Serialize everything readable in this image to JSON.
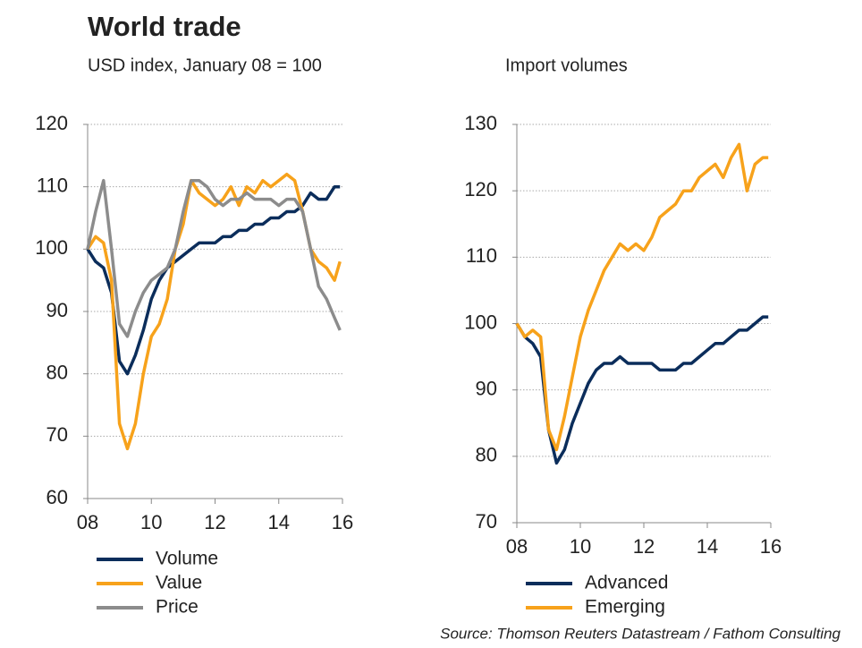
{
  "title": "World trade",
  "source": "Source: Thomson Reuters Datastream / Fathom Consulting",
  "chart_data": [
    {
      "type": "line",
      "subtitle": "USD index, January 08 = 100",
      "x": [
        2008,
        2008.25,
        2008.5,
        2008.75,
        2009,
        2009.25,
        2009.5,
        2009.75,
        2010,
        2010.25,
        2010.5,
        2010.75,
        2011,
        2011.25,
        2011.5,
        2011.75,
        2012,
        2012.25,
        2012.5,
        2012.75,
        2013,
        2013.25,
        2013.5,
        2013.75,
        2014,
        2014.25,
        2014.5,
        2014.75,
        2015,
        2015.25,
        2015.5,
        2015.75,
        2015.92
      ],
      "series": [
        {
          "name": "Volume",
          "color": "#0b2d5b",
          "values": [
            100,
            98,
            97,
            93,
            82,
            80,
            83,
            87,
            92,
            95,
            97,
            98,
            99,
            100,
            101,
            101,
            101,
            102,
            102,
            103,
            103,
            104,
            104,
            105,
            105,
            106,
            106,
            107,
            109,
            108,
            108,
            110,
            110
          ]
        },
        {
          "name": "Value",
          "color": "#f7a21b",
          "values": [
            100,
            102,
            101,
            95,
            72,
            68,
            72,
            80,
            86,
            88,
            92,
            100,
            104,
            111,
            109,
            108,
            107,
            108,
            110,
            107,
            110,
            109,
            111,
            110,
            111,
            112,
            111,
            106,
            100,
            98,
            97,
            95,
            98
          ]
        },
        {
          "name": "Price",
          "color": "#8c8c8c",
          "values": [
            100,
            106,
            111,
            100,
            88,
            86,
            90,
            93,
            95,
            96,
            97,
            100,
            106,
            111,
            111,
            110,
            108,
            107,
            108,
            108,
            109,
            108,
            108,
            108,
            107,
            108,
            108,
            106,
            100,
            94,
            92,
            89,
            87
          ]
        }
      ],
      "xlim": [
        2008,
        2016
      ],
      "xticks": [
        {
          "value": 2008,
          "label": "08"
        },
        {
          "value": 2010,
          "label": "10"
        },
        {
          "value": 2012,
          "label": "12"
        },
        {
          "value": 2014,
          "label": "14"
        },
        {
          "value": 2016,
          "label": "16"
        }
      ],
      "ylim": [
        60,
        120
      ],
      "yticks": [
        60,
        70,
        80,
        90,
        100,
        110,
        120
      ],
      "grid": true
    },
    {
      "type": "line",
      "subtitle": "Import volumes",
      "x": [
        2008,
        2008.25,
        2008.5,
        2008.75,
        2009,
        2009.25,
        2009.5,
        2009.75,
        2010,
        2010.25,
        2010.5,
        2010.75,
        2011,
        2011.25,
        2011.5,
        2011.75,
        2012,
        2012.25,
        2012.5,
        2012.75,
        2013,
        2013.25,
        2013.5,
        2013.75,
        2014,
        2014.25,
        2014.5,
        2014.75,
        2015,
        2015.25,
        2015.5,
        2015.75,
        2015.92
      ],
      "series": [
        {
          "name": "Advanced",
          "color": "#0b2d5b",
          "values": [
            100,
            98,
            97,
            95,
            84,
            79,
            81,
            85,
            88,
            91,
            93,
            94,
            94,
            95,
            94,
            94,
            94,
            94,
            93,
            93,
            93,
            94,
            94,
            95,
            96,
            97,
            97,
            98,
            99,
            99,
            100,
            101,
            101
          ]
        },
        {
          "name": "Emerging",
          "color": "#f7a21b",
          "values": [
            100,
            98,
            99,
            98,
            84,
            81,
            86,
            92,
            98,
            102,
            105,
            108,
            110,
            112,
            111,
            112,
            111,
            113,
            116,
            117,
            118,
            120,
            120,
            122,
            123,
            124,
            122,
            125,
            127,
            120,
            124,
            125,
            125
          ]
        }
      ],
      "xlim": [
        2008,
        2016
      ],
      "xticks": [
        {
          "value": 2008,
          "label": "08"
        },
        {
          "value": 2010,
          "label": "10"
        },
        {
          "value": 2012,
          "label": "12"
        },
        {
          "value": 2014,
          "label": "14"
        },
        {
          "value": 2016,
          "label": "16"
        }
      ],
      "ylim": [
        70,
        130
      ],
      "yticks": [
        70,
        80,
        90,
        100,
        110,
        120,
        130
      ],
      "grid": true
    }
  ]
}
